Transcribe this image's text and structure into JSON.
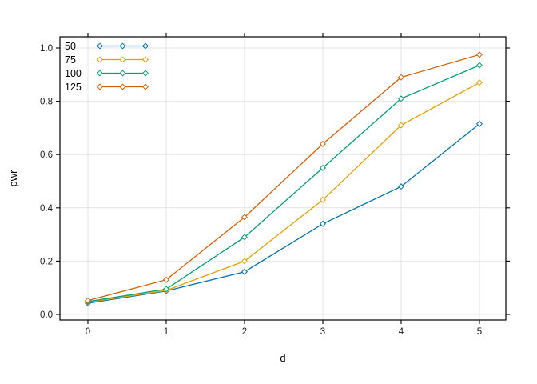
{
  "chart_data": {
    "type": "line",
    "title": "",
    "xlabel": "d",
    "ylabel": "pwr",
    "x": [
      0,
      1,
      2,
      3,
      4,
      5
    ],
    "series": [
      {
        "name": "50",
        "color": "#0072B2",
        "values": [
          0.042,
          0.088,
          0.16,
          0.34,
          0.48,
          0.715
        ]
      },
      {
        "name": "75",
        "color": "#E69F00",
        "values": [
          0.045,
          0.09,
          0.2,
          0.43,
          0.71,
          0.87
        ]
      },
      {
        "name": "100",
        "color": "#009E73",
        "values": [
          0.048,
          0.095,
          0.29,
          0.55,
          0.81,
          0.935
        ]
      },
      {
        "name": "125",
        "color": "#D55E00",
        "values": [
          0.052,
          0.13,
          0.365,
          0.64,
          0.89,
          0.975
        ]
      }
    ],
    "x_tick_values": [
      0,
      1,
      2,
      3,
      4,
      5
    ],
    "x_tick_labels": [
      "0",
      "1",
      "2",
      "3",
      "4",
      "5"
    ],
    "y_tick_values": [
      0.0,
      0.2,
      0.4,
      0.6,
      0.8,
      1.0
    ],
    "y_tick_labels": [
      "0.0",
      "0.2",
      "0.4",
      "0.6",
      "0.8",
      "1.0"
    ],
    "xlim": [
      -0.357,
      5.337
    ],
    "ylim": [
      -0.021,
      1.042
    ],
    "grid": true,
    "marker": "open-diamond",
    "legend": {
      "position": "top-left-inside",
      "entries": [
        "50",
        "75",
        "100",
        "125"
      ]
    },
    "colors": {
      "grid": "#e4e4e4",
      "axis_line": "#000000",
      "tick_label": "#1a1a1a",
      "background": "#ffffff"
    }
  }
}
